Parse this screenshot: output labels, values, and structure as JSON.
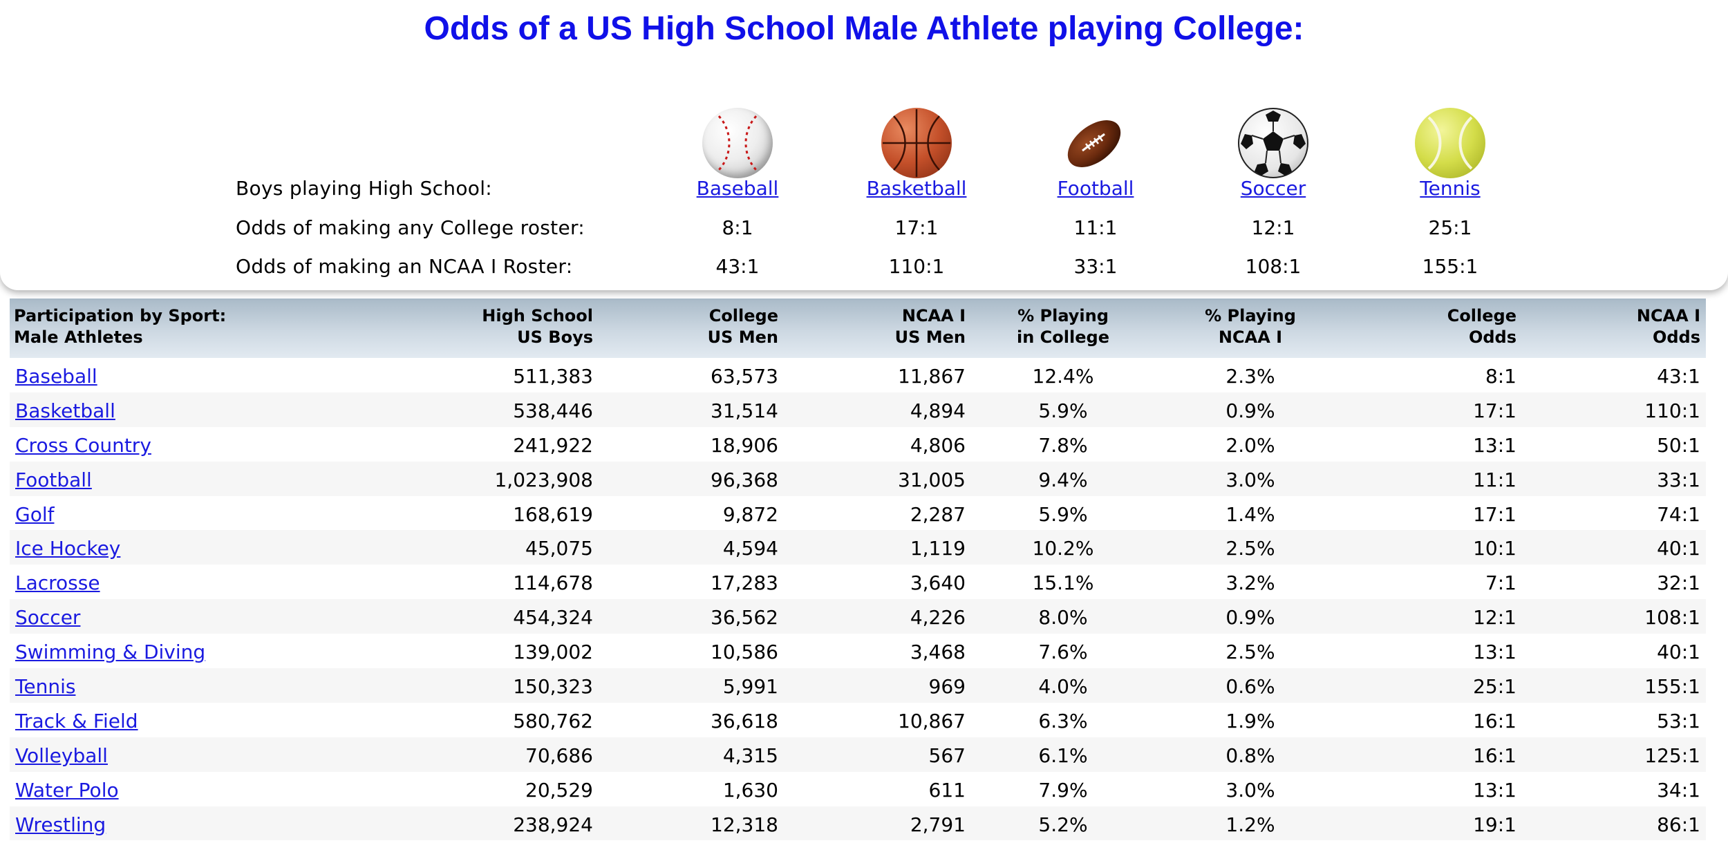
{
  "page_title": "Odds of a US High School Male Athlete playing College:",
  "summary": {
    "labels": {
      "hs": "Boys playing High School:",
      "college": "Odds of making any College roster:",
      "ncaa": "Odds of making an NCAA I Roster:"
    },
    "sports": [
      {
        "name": "Baseball",
        "icon": "baseball-icon",
        "college_odds": "8:1",
        "ncaa_odds": "43:1"
      },
      {
        "name": "Basketball",
        "icon": "basketball-icon",
        "college_odds": "17:1",
        "ncaa_odds": "110:1"
      },
      {
        "name": "Football",
        "icon": "football-icon",
        "college_odds": "11:1",
        "ncaa_odds": "33:1"
      },
      {
        "name": "Soccer",
        "icon": "soccer-ball-icon",
        "college_odds": "12:1",
        "ncaa_odds": "108:1"
      },
      {
        "name": "Tennis",
        "icon": "tennis-ball-icon",
        "college_odds": "25:1",
        "ncaa_odds": "155:1"
      }
    ]
  },
  "table": {
    "headers": {
      "sport": [
        "Participation by Sport:",
        "Male Athletes"
      ],
      "hs": [
        "High School",
        "US Boys"
      ],
      "college": [
        "College",
        "US Men"
      ],
      "ncaa": [
        "NCAA I",
        "US Men"
      ],
      "pct_college": [
        "% Playing",
        "in College"
      ],
      "pct_ncaa": [
        "% Playing",
        "NCAA I"
      ],
      "college_odds": [
        "College",
        "Odds"
      ],
      "ncaa_odds": [
        "NCAA I",
        "Odds"
      ]
    },
    "rows": [
      {
        "sport": "Baseball",
        "hs": "511,383",
        "college": "63,573",
        "ncaa": "11,867",
        "pct_college": "12.4%",
        "pct_ncaa": "2.3%",
        "college_odds": "8:1",
        "ncaa_odds": "43:1"
      },
      {
        "sport": "Basketball",
        "hs": "538,446",
        "college": "31,514",
        "ncaa": "4,894",
        "pct_college": "5.9%",
        "pct_ncaa": "0.9%",
        "college_odds": "17:1",
        "ncaa_odds": "110:1"
      },
      {
        "sport": "Cross Country",
        "hs": "241,922",
        "college": "18,906",
        "ncaa": "4,806",
        "pct_college": "7.8%",
        "pct_ncaa": "2.0%",
        "college_odds": "13:1",
        "ncaa_odds": "50:1"
      },
      {
        "sport": "Football",
        "hs": "1,023,908",
        "college": "96,368",
        "ncaa": "31,005",
        "pct_college": "9.4%",
        "pct_ncaa": "3.0%",
        "college_odds": "11:1",
        "ncaa_odds": "33:1"
      },
      {
        "sport": "Golf",
        "hs": "168,619",
        "college": "9,872",
        "ncaa": "2,287",
        "pct_college": "5.9%",
        "pct_ncaa": "1.4%",
        "college_odds": "17:1",
        "ncaa_odds": "74:1"
      },
      {
        "sport": "Ice Hockey",
        "hs": "45,075",
        "college": "4,594",
        "ncaa": "1,119",
        "pct_college": "10.2%",
        "pct_ncaa": "2.5%",
        "college_odds": "10:1",
        "ncaa_odds": "40:1"
      },
      {
        "sport": "Lacrosse",
        "hs": "114,678",
        "college": "17,283",
        "ncaa": "3,640",
        "pct_college": "15.1%",
        "pct_ncaa": "3.2%",
        "college_odds": "7:1",
        "ncaa_odds": "32:1"
      },
      {
        "sport": "Soccer",
        "hs": "454,324",
        "college": "36,562",
        "ncaa": "4,226",
        "pct_college": "8.0%",
        "pct_ncaa": "0.9%",
        "college_odds": "12:1",
        "ncaa_odds": "108:1"
      },
      {
        "sport": "Swimming & Diving",
        "hs": "139,002",
        "college": "10,586",
        "ncaa": "3,468",
        "pct_college": "7.6%",
        "pct_ncaa": "2.5%",
        "college_odds": "13:1",
        "ncaa_odds": "40:1"
      },
      {
        "sport": "Tennis",
        "hs": "150,323",
        "college": "5,991",
        "ncaa": "969",
        "pct_college": "4.0%",
        "pct_ncaa": "0.6%",
        "college_odds": "25:1",
        "ncaa_odds": "155:1"
      },
      {
        "sport": "Track & Field ",
        "hs": "580,762",
        "college": "36,618",
        "ncaa": "10,867",
        "pct_college": "6.3%",
        "pct_ncaa": "1.9%",
        "college_odds": "16:1",
        "ncaa_odds": "53:1"
      },
      {
        "sport": "Volleyball",
        "hs": "70,686",
        "college": "4,315",
        "ncaa": "567",
        "pct_college": "6.1%",
        "pct_ncaa": "0.8%",
        "college_odds": "16:1",
        "ncaa_odds": "125:1"
      },
      {
        "sport": "Water Polo",
        "hs": "20,529",
        "college": "1,630",
        "ncaa": "611",
        "pct_college": "7.9%",
        "pct_ncaa": "3.0%",
        "college_odds": "13:1",
        "ncaa_odds": "34:1"
      },
      {
        "sport": "Wrestling",
        "hs": "238,924",
        "college": "12,318",
        "ncaa": "2,791",
        "pct_college": "5.2%",
        "pct_ncaa": "1.2%",
        "college_odds": "19:1",
        "ncaa_odds": "86:1"
      }
    ]
  }
}
